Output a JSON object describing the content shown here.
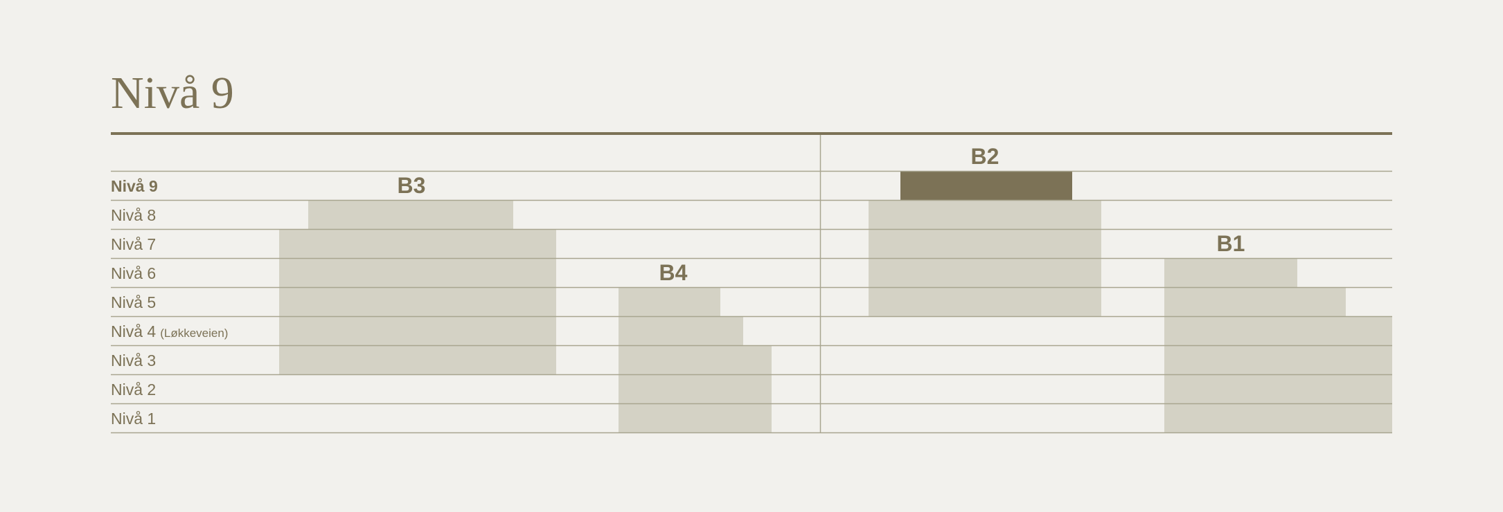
{
  "title": "Nivå 9",
  "current_level": 9,
  "colors": {
    "background": "#f2f1ed",
    "accent": "#7c7256",
    "block": "#d4d2c5",
    "gridline": "#a8a58f",
    "highlight": "#7c7256"
  },
  "levels": [
    {
      "level": 9,
      "label": "Nivå 9",
      "note": ""
    },
    {
      "level": 8,
      "label": "Nivå 8",
      "note": ""
    },
    {
      "level": 7,
      "label": "Nivå 7",
      "note": ""
    },
    {
      "level": 6,
      "label": "Nivå 6",
      "note": ""
    },
    {
      "level": 5,
      "label": "Nivå 5",
      "note": ""
    },
    {
      "level": 4,
      "label": "Nivå 4",
      "note": "(Løkkeveien)"
    },
    {
      "level": 3,
      "label": "Nivå 3",
      "note": ""
    },
    {
      "level": 2,
      "label": "Nivå 2",
      "note": ""
    },
    {
      "level": 1,
      "label": "Nivå 1",
      "note": ""
    }
  ],
  "buildings": [
    {
      "name": "B3",
      "top_level": 8,
      "bottom_level": 3
    },
    {
      "name": "B4",
      "top_level": 5,
      "bottom_level": 1
    },
    {
      "name": "B2",
      "top_level": 9,
      "bottom_level": 5
    },
    {
      "name": "B1",
      "top_level": 6,
      "bottom_level": 1
    }
  ]
}
